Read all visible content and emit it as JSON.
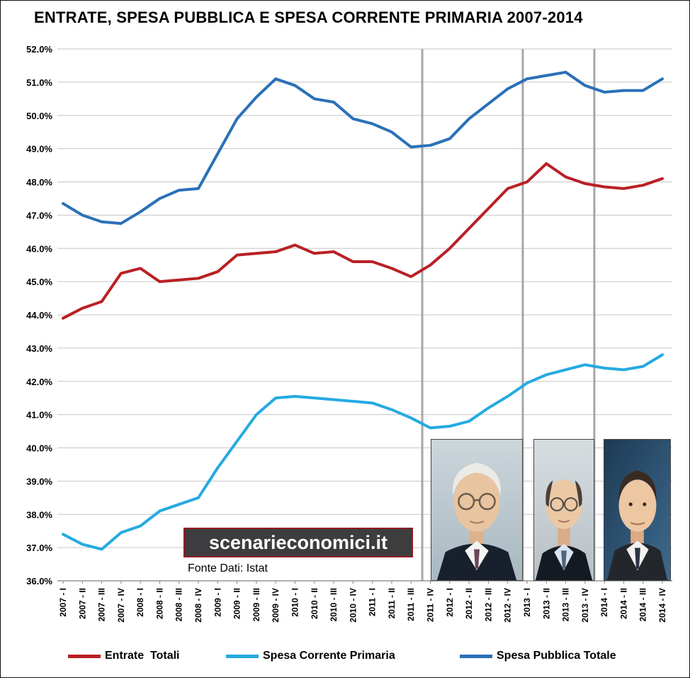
{
  "watermark": {
    "text": "scenarieconomici.it"
  },
  "source_note": "Fonte Dati: Istat",
  "legend": [
    {
      "label": "Entrate  Totali",
      "color": "#b92025"
    },
    {
      "label": "Spesa Corrente Primaria",
      "color": "#25aae1"
    },
    {
      "label": "Spesa Pubblica Totale",
      "color": "#2a70b8"
    }
  ],
  "chart_data": {
    "type": "line",
    "title": "ENTRATE, SPESA PUBBLICA E SPESA CORRENTE PRIMARIA 2007-2014",
    "xlabel": "",
    "ylabel": "",
    "ylim": [
      36,
      52
    ],
    "y_tick_step": 1,
    "y_tick_format": "0.0%",
    "grid": true,
    "legend_position": "bottom",
    "categories": [
      "2007 - I",
      "2007 - II",
      "2007 - III",
      "2007 - IV",
      "2008 - I",
      "2008 - II",
      "2008 - III",
      "2008 - IV",
      "2009 - I",
      "2009 - II",
      "2009 - III",
      "2009 - IV",
      "2010 - I",
      "2010 - II",
      "2010 - III",
      "2010 - IV",
      "2011 - I",
      "2011 - II",
      "2011 - III",
      "2011 - IV",
      "2012 - I",
      "2012 - II",
      "2012 - III",
      "2012 - IV",
      "2013 - I",
      "2013 - II",
      "2013 - III",
      "2013 - IV",
      "2014 - I",
      "2014 - II",
      "2014 - III",
      "2014 - IV"
    ],
    "series": [
      {
        "id": "entrate-totali",
        "name": "Entrate Totali",
        "color": "#b92025",
        "values": [
          43.9,
          44.2,
          44.4,
          45.25,
          45.4,
          45.0,
          45.05,
          45.1,
          45.3,
          45.8,
          45.85,
          45.9,
          46.1,
          45.85,
          45.9,
          45.6,
          45.6,
          45.4,
          45.15,
          45.5,
          46.0,
          46.6,
          47.2,
          47.8,
          48.0,
          48.55,
          48.15,
          47.95,
          47.85,
          47.8,
          47.9,
          48.1
        ]
      },
      {
        "id": "spesa-corrente-primaria",
        "name": "Spesa Corrente Primaria",
        "color": "#25aae1",
        "values": [
          37.4,
          37.1,
          36.95,
          37.45,
          37.65,
          38.1,
          38.3,
          38.5,
          39.4,
          40.2,
          41.0,
          41.5,
          41.55,
          41.5,
          41.45,
          41.4,
          41.35,
          41.15,
          40.9,
          40.6,
          40.65,
          40.8,
          41.2,
          41.55,
          41.95,
          42.2,
          42.35,
          42.5,
          42.4,
          42.35,
          42.45,
          42.8
        ]
      },
      {
        "id": "spesa-pubblica-totale",
        "name": "Spesa Pubblica Totale",
        "color": "#2a70b8",
        "values": [
          47.35,
          47.0,
          46.8,
          46.75,
          47.1,
          47.5,
          47.75,
          47.8,
          48.85,
          49.9,
          50.55,
          51.1,
          50.9,
          50.5,
          50.4,
          49.9,
          49.75,
          49.5,
          49.05,
          49.1,
          49.3,
          49.9,
          50.35,
          50.8,
          51.1,
          51.2,
          51.3,
          50.9,
          50.7,
          50.75,
          50.75,
          51.1
        ]
      }
    ],
    "markers": {
      "color": "#a6a6a6",
      "x_indices": [
        18.58,
        23.78,
        27.48
      ]
    },
    "colors": {
      "grid": "#c6c6c6",
      "axis": "#808080"
    }
  }
}
